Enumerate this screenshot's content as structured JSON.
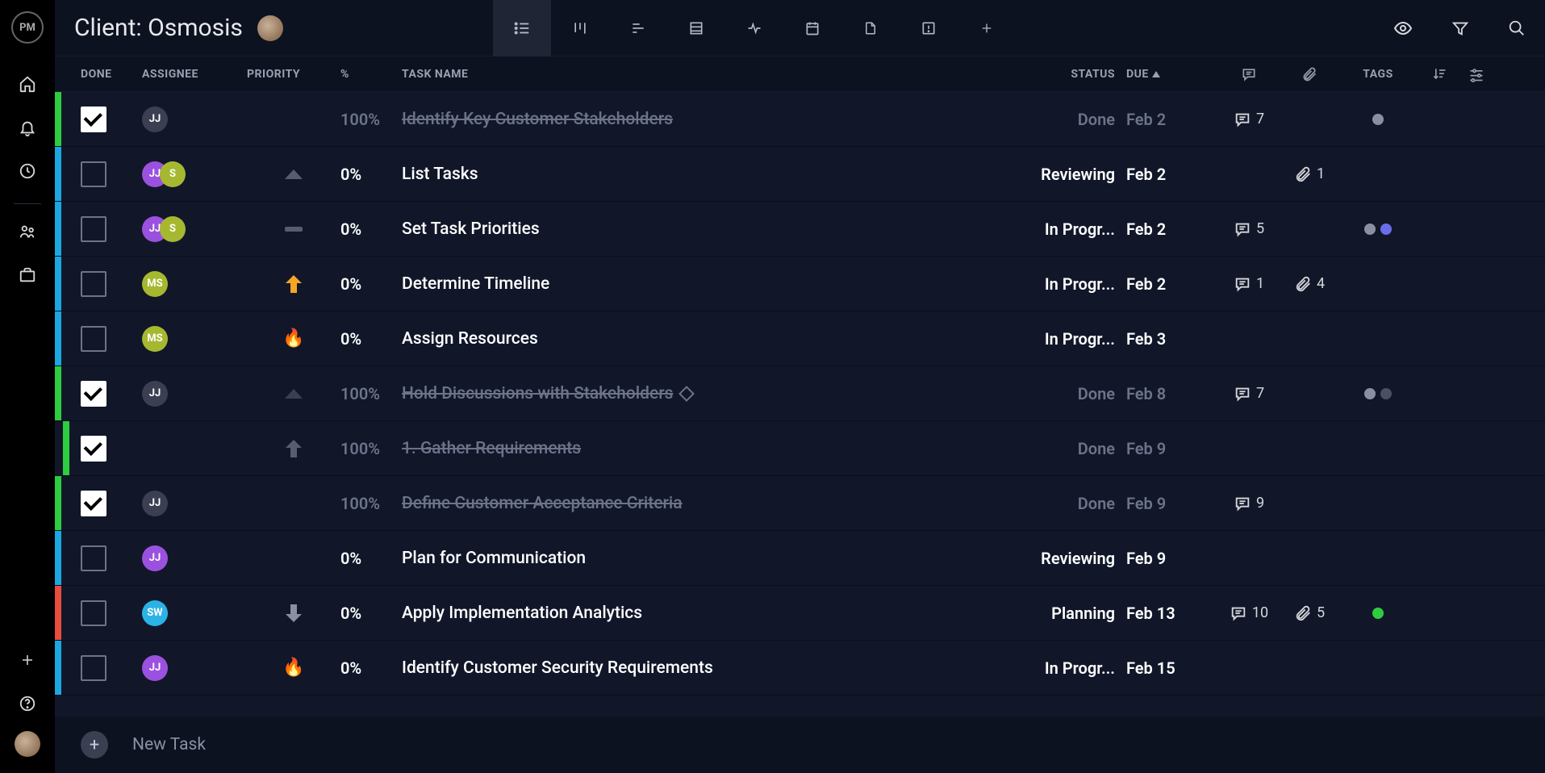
{
  "header": {
    "title": "Client: Osmosis"
  },
  "columns": {
    "done": "DONE",
    "assignee": "ASSIGNEE",
    "priority": "PRIORITY",
    "pct": "%",
    "name": "TASK NAME",
    "status": "STATUS",
    "due": "DUE",
    "tags": "TAGS"
  },
  "newtask_label": "New Task",
  "colors": {
    "bar_green": "#2ecc40",
    "bar_blue": "#1ba7e0",
    "bar_red": "#e74c3c",
    "av_purple": "#9b51e0",
    "av_olive": "#a6b82f",
    "av_cyan": "#2bb3e6",
    "av_gray": "#3a3f52",
    "tag_gray": "#8a8fa3",
    "tag_violet": "#6a6de8",
    "tag_dark": "#4a4f63",
    "tag_green": "#2ecc40"
  },
  "tasks": [
    {
      "bar": "#2ecc40",
      "done": true,
      "assignees": [
        {
          "initials": "JJ",
          "color": "#3a3f52"
        }
      ],
      "priority": null,
      "pct": "100%",
      "name": "Identify Key Customer Stakeholders",
      "status": "Done",
      "due": "Feb 2",
      "comments": "7",
      "attachments": "",
      "tags": [
        "#8a8fa3"
      ],
      "indent": false,
      "diamond": false
    },
    {
      "bar": "#1ba7e0",
      "done": false,
      "assignees": [
        {
          "initials": "JJ",
          "color": "#9b51e0"
        },
        {
          "initials": "S",
          "color": "#a6b82f"
        }
      ],
      "priority": "low",
      "pct": "0%",
      "name": "List Tasks",
      "status": "Reviewing",
      "due": "Feb 2",
      "comments": "",
      "attachments": "1",
      "tags": [],
      "indent": false,
      "diamond": false
    },
    {
      "bar": "#1ba7e0",
      "done": false,
      "assignees": [
        {
          "initials": "JJ",
          "color": "#9b51e0"
        },
        {
          "initials": "S",
          "color": "#a6b82f"
        }
      ],
      "priority": "dash",
      "pct": "0%",
      "name": "Set Task Priorities",
      "status": "In Progr...",
      "due": "Feb 2",
      "comments": "5",
      "attachments": "",
      "tags": [
        "#8a8fa3",
        "#6a6de8"
      ],
      "indent": false,
      "diamond": false
    },
    {
      "bar": "#1ba7e0",
      "done": false,
      "assignees": [
        {
          "initials": "MS",
          "color": "#a6b82f"
        }
      ],
      "priority": "up-orange",
      "pct": "0%",
      "name": "Determine Timeline",
      "status": "In Progr...",
      "due": "Feb 2",
      "comments": "1",
      "attachments": "4",
      "tags": [],
      "indent": false,
      "diamond": false
    },
    {
      "bar": "#1ba7e0",
      "done": false,
      "assignees": [
        {
          "initials": "MS",
          "color": "#a6b82f"
        }
      ],
      "priority": "fire",
      "pct": "0%",
      "name": "Assign Resources",
      "status": "In Progr...",
      "due": "Feb 3",
      "comments": "",
      "attachments": "",
      "tags": [],
      "indent": false,
      "diamond": false
    },
    {
      "bar": "#2ecc40",
      "done": true,
      "assignees": [
        {
          "initials": "JJ",
          "color": "#3a3f52"
        }
      ],
      "priority": "low-dim",
      "pct": "100%",
      "name": "Hold Discussions with Stakeholders",
      "status": "Done",
      "due": "Feb 8",
      "comments": "7",
      "attachments": "",
      "tags": [
        "#8a8fa3",
        "#4a4f63"
      ],
      "indent": false,
      "diamond": true
    },
    {
      "bar": "#2ecc40",
      "done": true,
      "assignees": [],
      "priority": "up-gray",
      "pct": "100%",
      "name": "1. Gather Requirements",
      "status": "Done",
      "due": "Feb 9",
      "comments": "",
      "attachments": "",
      "tags": [],
      "indent": true,
      "diamond": false
    },
    {
      "bar": "#2ecc40",
      "done": true,
      "assignees": [
        {
          "initials": "JJ",
          "color": "#3a3f52"
        }
      ],
      "priority": null,
      "pct": "100%",
      "name": "Define Customer Acceptance Criteria",
      "status": "Done",
      "due": "Feb 9",
      "comments": "9",
      "attachments": "",
      "tags": [],
      "indent": false,
      "diamond": false
    },
    {
      "bar": "#1ba7e0",
      "done": false,
      "assignees": [
        {
          "initials": "JJ",
          "color": "#9b51e0"
        }
      ],
      "priority": null,
      "pct": "0%",
      "name": "Plan for Communication",
      "status": "Reviewing",
      "due": "Feb 9",
      "comments": "",
      "attachments": "",
      "tags": [],
      "indent": false,
      "diamond": false
    },
    {
      "bar": "#e74c3c",
      "done": false,
      "assignees": [
        {
          "initials": "SW",
          "color": "#2bb3e6"
        }
      ],
      "priority": "down-gray",
      "pct": "0%",
      "name": "Apply Implementation Analytics",
      "status": "Planning",
      "due": "Feb 13",
      "comments": "10",
      "attachments": "5",
      "tags": [
        "#2ecc40"
      ],
      "indent": false,
      "diamond": false
    },
    {
      "bar": "#1ba7e0",
      "done": false,
      "assignees": [
        {
          "initials": "JJ",
          "color": "#9b51e0"
        }
      ],
      "priority": "fire",
      "pct": "0%",
      "name": "Identify Customer Security Requirements",
      "status": "In Progr...",
      "due": "Feb 15",
      "comments": "",
      "attachments": "",
      "tags": [],
      "indent": false,
      "diamond": false
    }
  ]
}
